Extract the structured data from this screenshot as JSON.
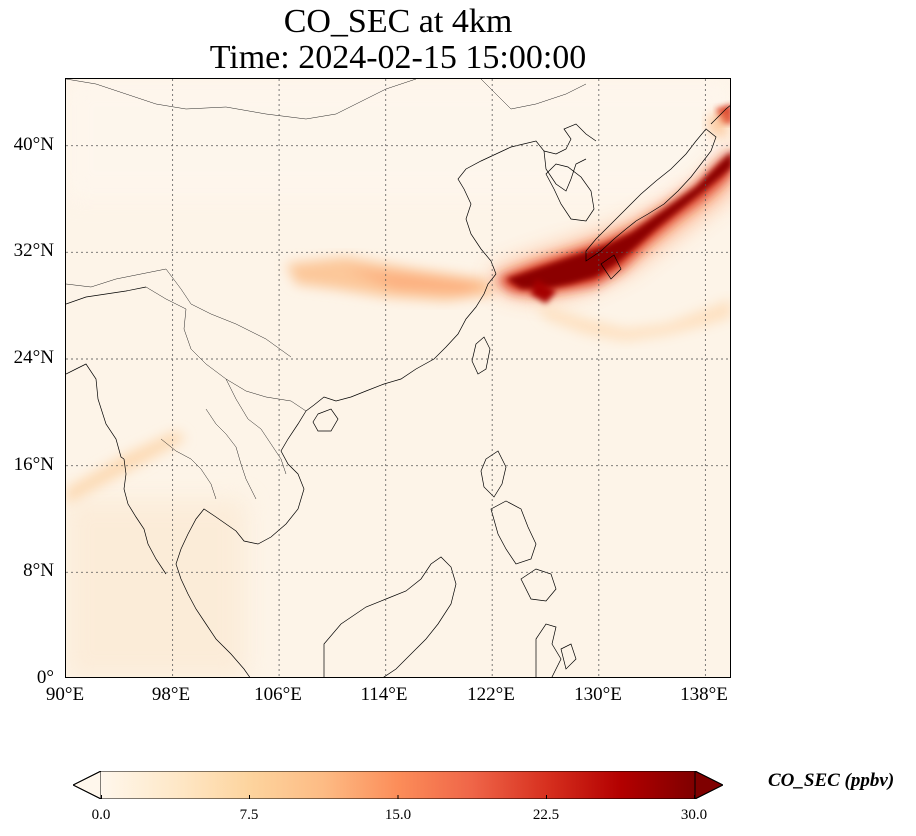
{
  "title": {
    "line1": "CO_SEC at 4km",
    "line2": "Time: 2024-02-15 15:00:00"
  },
  "map": {
    "lon_range": [
      90,
      140
    ],
    "lat_range": [
      0,
      45
    ],
    "projection": "PlateCarree",
    "gridlines": "dotted",
    "x_ticks": [
      "90°E",
      "98°E",
      "106°E",
      "114°E",
      "122°E",
      "130°E",
      "138°E"
    ],
    "y_ticks": [
      "0°",
      "8°N",
      "16°N",
      "24°N",
      "32°N",
      "40°N"
    ],
    "x_tick_values": [
      90,
      98,
      106,
      114,
      122,
      130,
      138
    ],
    "y_tick_values": [
      0,
      8,
      16,
      24,
      32,
      40
    ],
    "field": "CO_SEC",
    "colormap": "OrRd",
    "plume_description_colors": {
      "low": "#fdf4e8",
      "mid": "#fc8d59",
      "high": "#7f0000"
    }
  },
  "colorbar": {
    "label": "CO_SEC (ppbv)",
    "ticks": [
      "0.0",
      "7.5",
      "15.0",
      "22.5",
      "30.0"
    ],
    "min": 0,
    "max": 30,
    "extend": "both",
    "colors": [
      "#fff7ec",
      "#fee8c8",
      "#fdd49e",
      "#fdbb84",
      "#fc8d59",
      "#ef6548",
      "#d7301f",
      "#b30000",
      "#7f0000"
    ]
  }
}
